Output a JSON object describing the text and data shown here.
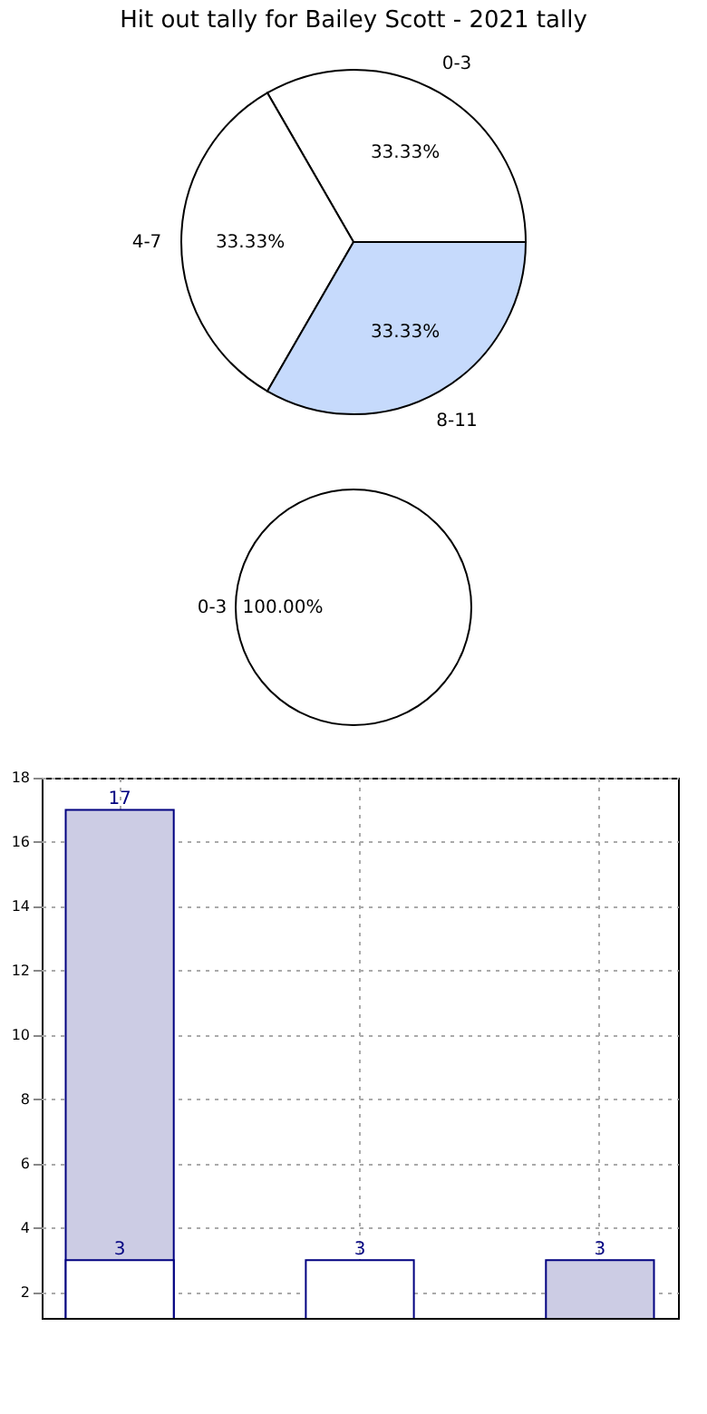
{
  "chart_data": [
    {
      "type": "pie",
      "title": "Hit out tally for Bailey Scott - 2021 tally",
      "categories": [
        "0-3",
        "4-7",
        "8-11"
      ],
      "values": [
        33.33,
        33.33,
        33.33
      ],
      "colors": [
        "#ffffff",
        "#ffffff",
        "#c6dafc"
      ],
      "value_labels": [
        "33.33%",
        "33.33%",
        "33.33%"
      ]
    },
    {
      "type": "pie",
      "categories": [
        "0-3"
      ],
      "values": [
        100
      ],
      "colors": [
        "#ffffff"
      ],
      "value_labels": [
        "100.00%"
      ]
    },
    {
      "type": "bar",
      "categories": [
        null,
        null,
        null
      ],
      "series": [
        {
          "color": "#cccce4",
          "values": [
            17,
            null,
            3
          ]
        },
        {
          "color": "#ffffff",
          "values": [
            3,
            3,
            null
          ]
        }
      ],
      "ylim": [
        1.2,
        18
      ],
      "yticks": [
        2,
        4,
        6,
        8,
        10,
        12,
        14,
        16,
        18
      ],
      "grid": true,
      "data_labels": true
    }
  ]
}
